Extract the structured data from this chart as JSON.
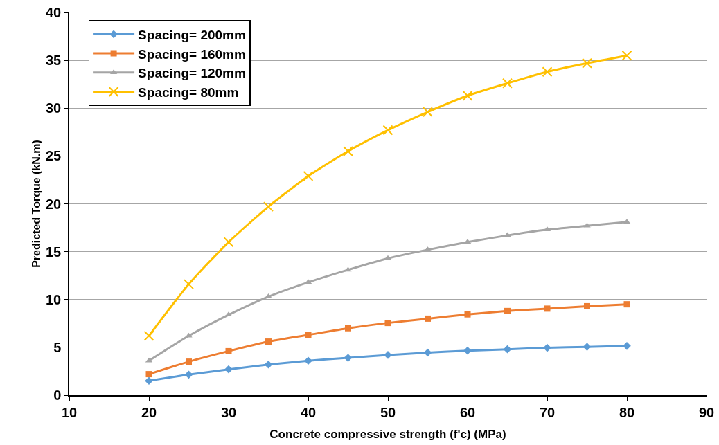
{
  "chart_data": {
    "type": "line",
    "xlabel": "Concrete compressive strength (f'c) (MPa)",
    "ylabel": "Predicted Torque (kN.m)",
    "x": [
      20,
      25,
      30,
      35,
      40,
      45,
      50,
      55,
      60,
      65,
      70,
      75,
      80
    ],
    "series": [
      {
        "name": "Spacing= 200mm",
        "color": "#5b9bd5",
        "marker": "diamond",
        "values": [
          1.5,
          2.15,
          2.7,
          3.2,
          3.6,
          3.9,
          4.2,
          4.45,
          4.65,
          4.8,
          4.95,
          5.05,
          5.15
        ]
      },
      {
        "name": "Spacing= 160mm",
        "color": "#ed7d31",
        "marker": "square",
        "values": [
          2.2,
          3.5,
          4.6,
          5.6,
          6.3,
          7.0,
          7.55,
          8.0,
          8.45,
          8.8,
          9.05,
          9.3,
          9.5
        ]
      },
      {
        "name": "Spacing= 120mm",
        "color": "#a5a5a5",
        "marker": "triangle",
        "values": [
          3.6,
          6.2,
          8.4,
          10.3,
          11.8,
          13.1,
          14.3,
          15.2,
          16.0,
          16.7,
          17.3,
          17.7,
          18.1
        ]
      },
      {
        "name": "Spacing= 80mm",
        "color": "#ffc000",
        "marker": "cross",
        "values": [
          6.2,
          11.6,
          16.0,
          19.7,
          22.9,
          25.5,
          27.7,
          29.6,
          31.3,
          32.6,
          33.8,
          34.7,
          35.5
        ]
      }
    ],
    "xlim": [
      10,
      90
    ],
    "xticks": [
      10,
      20,
      30,
      40,
      50,
      60,
      70,
      80,
      90
    ],
    "ylim": [
      0,
      40
    ],
    "yticks": [
      0,
      5,
      10,
      15,
      20,
      25,
      30,
      35,
      40
    ],
    "grid": "y",
    "legend": "top left",
    "line_style": "solid"
  }
}
